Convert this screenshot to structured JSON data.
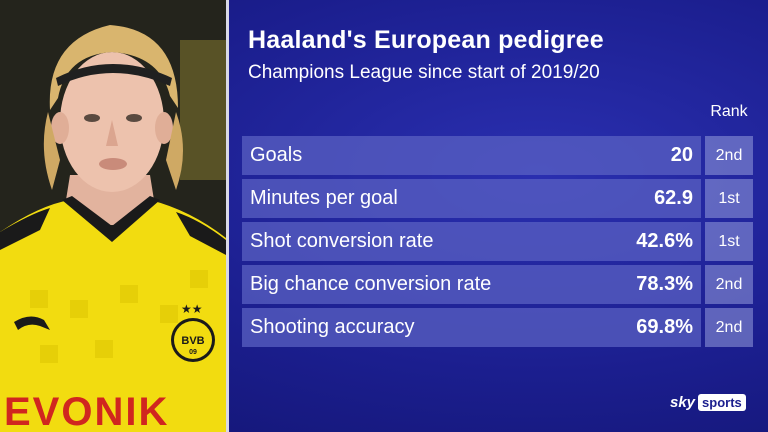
{
  "title": "Haaland's European pedigree",
  "subtitle": "Champions League since start of 2019/20",
  "rank_header": "Rank",
  "rows": [
    {
      "label": "Goals",
      "value": "20",
      "rank": "2nd"
    },
    {
      "label": "Minutes per goal",
      "value": "62.9",
      "rank": "1st"
    },
    {
      "label": "Shot conversion rate",
      "value": "42.6%",
      "rank": "1st"
    },
    {
      "label": "Big chance conversion rate",
      "value": "78.3%",
      "rank": "2nd"
    },
    {
      "label": "Shooting accuracy",
      "value": "69.8%",
      "rank": "2nd"
    }
  ],
  "brand": {
    "sky": "sky",
    "sports": "sports"
  },
  "photo": {
    "description_icon": "player-photo",
    "shirt_text": "EVONIK",
    "badge_text": "BVB",
    "badge_year": "09"
  },
  "colors": {
    "background": "#1b1e8e",
    "row": "#5c62c4",
    "rank_cell": "#969cdc",
    "shirt": "#f7e000"
  }
}
